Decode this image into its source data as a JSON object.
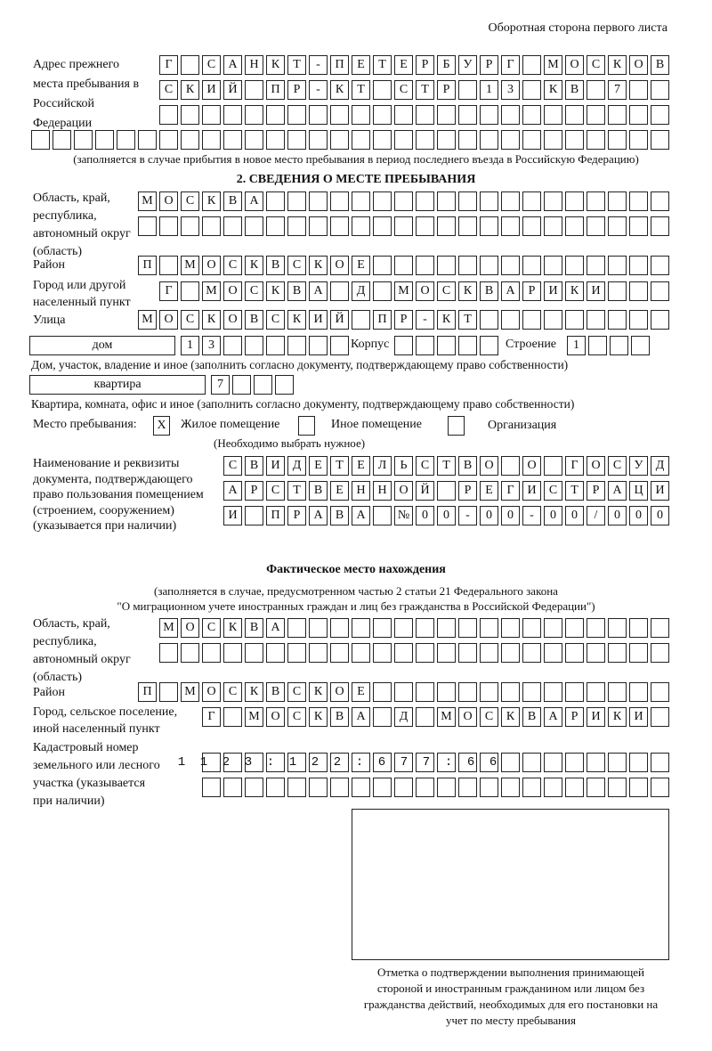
{
  "header": "Оборотная сторона первого листа",
  "prev_address": {
    "label": "Адрес прежнего места пребывания в Российской Федерации",
    "rows": [
      "Г САНКТ-ПЕТЕРБУРГ МОСКОВ",
      "СКИЙ ПР-КТ СТР 13 КВ 7",
      "",
      ""
    ],
    "note": "(заполняется в случае прибытия в новое место пребывания в период последнего въезда в Российскую Федерацию)"
  },
  "section2": {
    "title": "2. СВЕДЕНИЯ О МЕСТЕ ПРЕБЫВАНИЯ",
    "region_label": "Область, край, республика, автономный округ (область)",
    "region": [
      "МОСКВА",
      ""
    ],
    "district_label": "Район",
    "district": "П МОСКВСКОЕ",
    "city_label": "Город или другой населенный пункт",
    "city": "Г МОСКВА Д МОСКВАРИКИ",
    "street_label": "Улица",
    "street": "МОСКОВСКИЙ ПР-КТ",
    "house_type": "дом",
    "house": "13",
    "korpus_label": "Корпус",
    "korpus": "",
    "stroenie_label": "Строение",
    "stroenie": "1",
    "house_note": "Дом, участок, владение и иное (заполнить согласно документу, подтверждающему право собственности)",
    "apt_type": "квартира",
    "apt": "7",
    "apt_note": "Квартира, комната, офис и иное (заполнить согласно документу, подтверждающему право собственности)",
    "place_label": "Место пребывания:",
    "place_options": [
      {
        "label": "Жилое помещение",
        "mark": "X"
      },
      {
        "label": "Иное помещение",
        "mark": ""
      },
      {
        "label": "Организация",
        "mark": ""
      }
    ],
    "place_note": "(Необходимо выбрать нужное)",
    "doc_label": "Наименование и реквизиты документа, подтверждающего право пользования помещением (строением, сооружением) (указывается при наличии)",
    "doc": [
      "СВИДЕТЕЛЬСТВО О ГОСУД",
      "АРСТВЕННОЙ РЕГИСТРАЦИ",
      "И ПРАВА №00-00-00/000"
    ]
  },
  "actual": {
    "title": "Фактическое место нахождения",
    "note1": "(заполняется в случае, предусмотренном частью 2 статьи 21 Федерального закона",
    "note2": "\"О миграционном учете иностранных граждан и лиц без гражданства в Российской Федерации\")",
    "region_label": "Область, край, республика, автономный округ (область)",
    "region": [
      "МОСКВА",
      ""
    ],
    "district_label": "Район",
    "district": "П МОСКВСКОЕ",
    "city_label": "Город, сельское поселение, иной населенный пункт",
    "city": "Г МОСКВА Д МОСКВАРИКИ",
    "cadastral_label": "Кадастровый номер земельного или лесного участка (указывается при наличии)",
    "cadastral": [
      "1123:122:677:66",
      ""
    ]
  },
  "stamp_caption": "Отметка о подтверждении выполнения принимающей стороной и иностранным гражданином или лицом без гражданства действий, необходимых для его постановки на учет по месту пребывания"
}
